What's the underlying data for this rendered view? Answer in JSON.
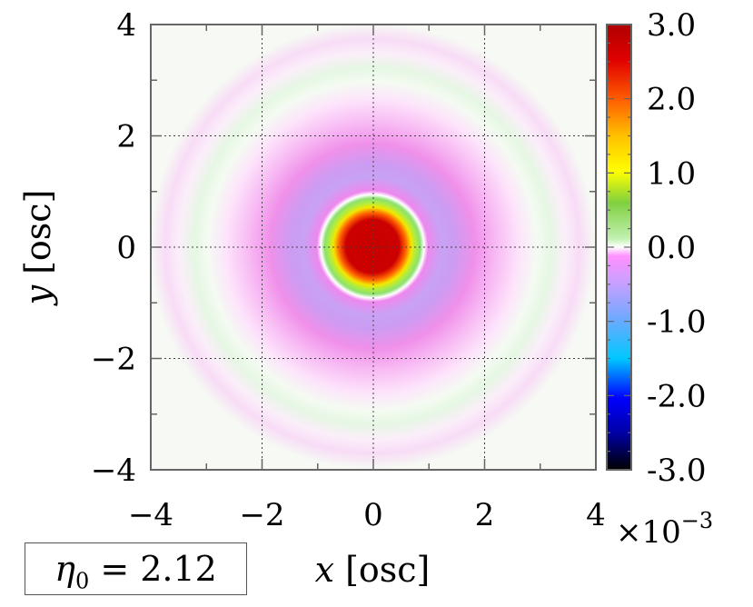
{
  "chart_data": {
    "type": "heatmap",
    "title": "",
    "xlabel_var": "x",
    "xlabel_unit": "[osc]",
    "ylabel_var": "y",
    "ylabel_unit": "[osc]",
    "xlim": [
      -4,
      4
    ],
    "ylim": [
      -4,
      4
    ],
    "x_ticks": [
      "−4",
      "−2",
      "0",
      "2",
      "4"
    ],
    "y_ticks": [
      "4",
      "2",
      "0",
      "−2",
      "−4"
    ],
    "grid": true,
    "colorbar": {
      "range": [
        -3.0,
        3.0
      ],
      "ticks": [
        "3.0",
        "2.0",
        "1.0",
        "0.0",
        "-1.0",
        "-2.0",
        "-3.0"
      ],
      "scale_base": "×10",
      "scale_exp": "−3"
    },
    "field_description": "radially symmetric: central peak ~3.0 within r<0.55, sign change near r≈0.9, negative ring ~-1.0 around r≈1.3, weak outer oscillating rings",
    "annotation": {
      "symbol": "η",
      "subscript": "0",
      "value": "= 2.12"
    }
  }
}
